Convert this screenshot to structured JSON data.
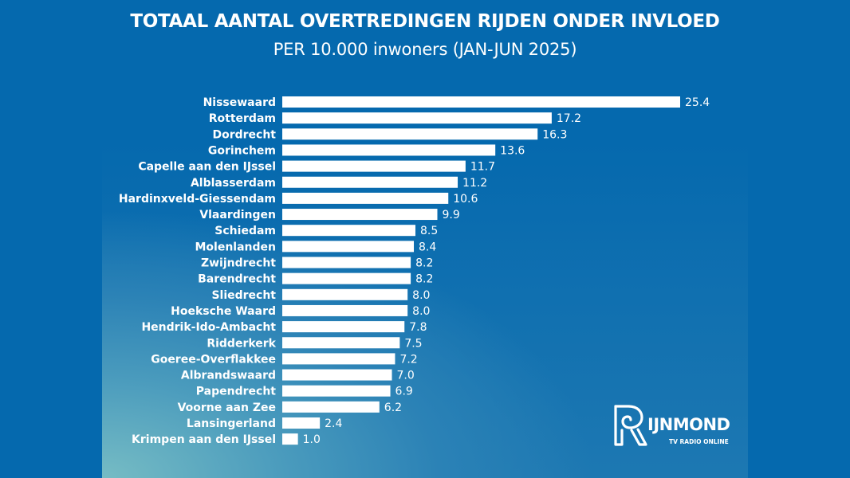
{
  "chart_data": {
    "type": "bar",
    "orientation": "horizontal",
    "title": "TOTAAL AANTAL OVERTREDINGEN RIJDEN ONDER INVLOED",
    "subtitle": "PER 10.000 inwoners (JAN-JUN 2025)",
    "xlabel": "",
    "ylabel": "",
    "xlim": [
      0,
      25.4
    ],
    "grid": false,
    "legend": "none",
    "categories": [
      "Nissewaard",
      "Rotterdam",
      "Dordrecht",
      "Gorinchem",
      "Capelle aan den IJssel",
      "Alblasserdam",
      "Hardinxveld-Giessendam",
      "Vlaardingen",
      "Schiedam",
      "Molenlanden",
      "Zwijndrecht",
      "Barendrecht",
      "Sliedrecht",
      "Hoeksche Waard",
      "Hendrik-Ido-Ambacht",
      "Ridderkerk",
      "Goeree-Overflakkee",
      "Albrandswaard",
      "Papendrecht",
      "Voorne aan Zee",
      "Lansingerland",
      "Krimpen aan den IJssel"
    ],
    "values": [
      25.4,
      17.2,
      16.3,
      13.6,
      11.7,
      11.2,
      10.6,
      9.9,
      8.5,
      8.4,
      8.2,
      8.2,
      8.0,
      8.0,
      7.8,
      7.5,
      7.2,
      7.0,
      6.9,
      6.2,
      2.4,
      1.0
    ],
    "value_labels": [
      "25.4",
      "17.2",
      "16.3",
      "13.6",
      "11.7",
      "11.2",
      "10.6",
      "9.9",
      "8.5",
      "8.4",
      "8.2",
      "8.2",
      "8.0",
      "8.0",
      "7.8",
      "7.5",
      "7.2",
      "7.0",
      "6.9",
      "6.2",
      "2.4",
      "1.0"
    ],
    "colors": {
      "bar": "#ffffff",
      "background": "#0569ae",
      "gradient_accent": "#76bcc4",
      "text": "#ffffff"
    }
  },
  "logo": {
    "letter": "R",
    "name": "IJNMOND",
    "tagline": "TV RADIO ONLINE"
  }
}
